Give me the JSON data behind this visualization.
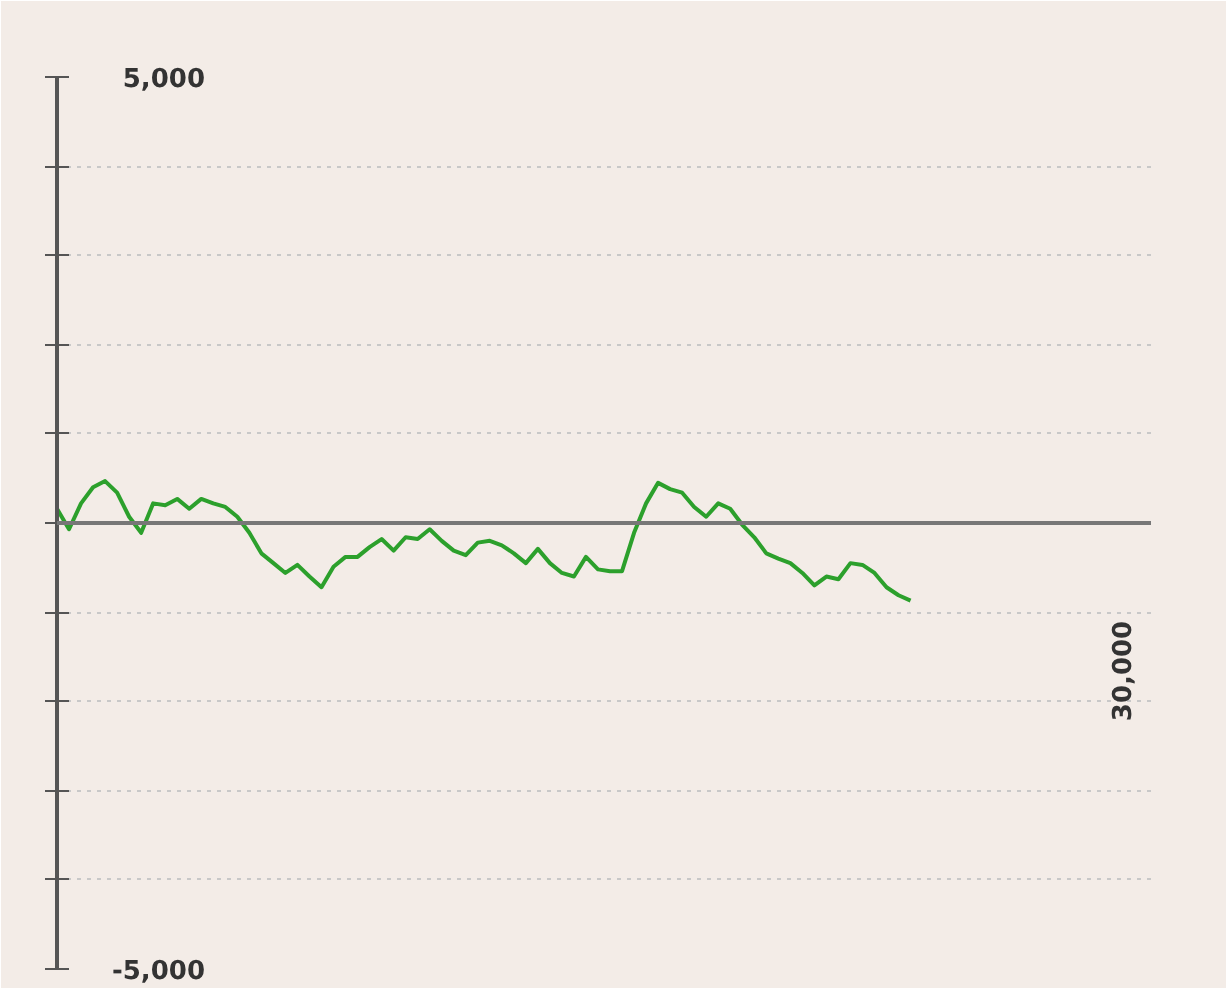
{
  "chart_data": {
    "type": "line",
    "categories": [
      null,
      null,
      null,
      null,
      null,
      null,
      null,
      null,
      null,
      null,
      null,
      null,
      null,
      null,
      null,
      null,
      null,
      null,
      null,
      null,
      null,
      null,
      null,
      null,
      null,
      null,
      null,
      null,
      null,
      null,
      null,
      null,
      null,
      null,
      null,
      null,
      null,
      null,
      null,
      null,
      null,
      null,
      null,
      null,
      null,
      null,
      null,
      null,
      null,
      null,
      null,
      null,
      null,
      null,
      null,
      null,
      null,
      null,
      null,
      null,
      null,
      null,
      null,
      null,
      null,
      null,
      null,
      null,
      null,
      null,
      null,
      null,
      null,
      null,
      null,
      null,
      null,
      null,
      null,
      null,
      null,
      null,
      null,
      null,
      null,
      null,
      null,
      null,
      null,
      null,
      null,
      null
    ],
    "series": [
      {
        "color": "#2ca02c",
        "values": [
          160,
          -70,
          220,
          400,
          470,
          340,
          70,
          -110,
          220,
          200,
          270,
          160,
          270,
          220,
          180,
          70,
          -110,
          -340,
          -450,
          -560,
          -470,
          -600,
          -720,
          -490,
          -380,
          -380,
          -270,
          -180,
          -310,
          -160,
          -180,
          -70,
          -200,
          -310,
          -360,
          -220,
          -200,
          -250,
          -340,
          -450,
          -290,
          -450,
          -560,
          -600,
          -380,
          -520,
          -540,
          -540,
          -110,
          220,
          450,
          380,
          340,
          180,
          70,
          220,
          160,
          -20,
          -160,
          -340,
          -400,
          -450,
          -560,
          -700,
          -600,
          -630,
          -450,
          -470,
          -560,
          -720,
          -810,
          -870,
          null,
          null,
          null,
          null,
          null,
          null,
          null,
          null,
          null,
          null,
          null,
          null,
          null,
          null,
          null,
          null,
          null,
          null,
          null,
          null
        ]
      }
    ],
    "annotations": [
      "30,000"
    ],
    "ylim": [
      -5000,
      5000
    ],
    "yticks": [
      {
        "value": -5000,
        "label": "-5,000"
      },
      {
        "value": -4000,
        "label": null
      },
      {
        "value": -3000,
        "label": null
      },
      {
        "value": -2000,
        "label": null
      },
      {
        "value": -1000,
        "label": null
      },
      {
        "value": 0,
        "label": null
      },
      {
        "value": 1000,
        "label": null
      },
      {
        "value": 2000,
        "label": null
      },
      {
        "value": 3000,
        "label": null
      },
      {
        "value": 4000,
        "label": null
      },
      {
        "value": 5000,
        "label": "5,000"
      }
    ],
    "grid": "y",
    "ref_lines": [
      {
        "axis": "y",
        "value": 0,
        "color": "#777777"
      }
    ],
    "marker": "none",
    "line_style": "solid"
  }
}
